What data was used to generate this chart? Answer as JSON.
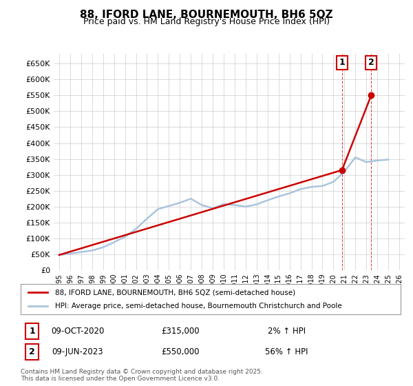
{
  "title": "88, IFORD LANE, BOURNEMOUTH, BH6 5QZ",
  "subtitle": "Price paid vs. HM Land Registry's House Price Index (HPI)",
  "ylabel_ticks": [
    "£0",
    "£50K",
    "£100K",
    "£150K",
    "£200K",
    "£250K",
    "£300K",
    "£350K",
    "£400K",
    "£450K",
    "£500K",
    "£550K",
    "£600K",
    "£650K"
  ],
  "ylim": [
    0,
    680000
  ],
  "xlim_start": 1994.5,
  "xlim_end": 2026.5,
  "legend_house": "88, IFORD LANE, BOURNEMOUTH, BH6 5QZ (semi-detached house)",
  "legend_hpi": "HPI: Average price, semi-detached house, Bournemouth Christchurch and Poole",
  "transaction1_label": "1",
  "transaction1_date": "09-OCT-2020",
  "transaction1_price": "£315,000",
  "transaction1_hpi": "2% ↑ HPI",
  "transaction2_label": "2",
  "transaction2_date": "09-JUN-2023",
  "transaction2_price": "£550,000",
  "transaction2_hpi": "56% ↑ HPI",
  "footnote": "Contains HM Land Registry data © Crown copyright and database right 2025.\nThis data is licensed under the Open Government Licence v3.0.",
  "house_color": "#cc0000",
  "hpi_color": "#aac4dd",
  "transaction1_x": 2020.78,
  "transaction2_x": 2023.44,
  "transaction1_y": 315000,
  "transaction2_y": 550000,
  "hpi_years": [
    1995,
    1996,
    1997,
    1998,
    1999,
    2000,
    2001,
    2002,
    2003,
    2004,
    2005,
    2006,
    2007,
    2008,
    2009,
    2010,
    2011,
    2012,
    2013,
    2014,
    2015,
    2016,
    2017,
    2018,
    2019,
    2020,
    2021,
    2022,
    2023,
    2024,
    2025
  ],
  "hpi_values": [
    48000,
    52000,
    57000,
    62000,
    72000,
    88000,
    105000,
    130000,
    162000,
    192000,
    202000,
    212000,
    225000,
    205000,
    195000,
    208000,
    205000,
    200000,
    207000,
    220000,
    232000,
    242000,
    255000,
    262000,
    265000,
    278000,
    310000,
    355000,
    340000,
    345000,
    348000
  ],
  "house_years": [
    1995,
    2020.78,
    2023.44
  ],
  "house_values": [
    48000,
    315000,
    550000
  ],
  "background_color": "#ffffff",
  "grid_color": "#cccccc"
}
